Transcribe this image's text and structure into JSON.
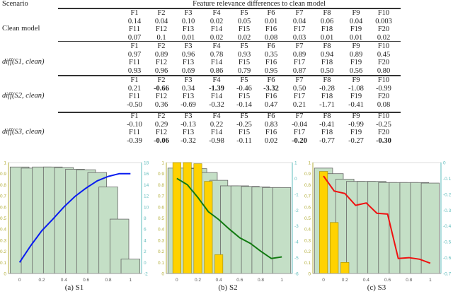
{
  "table": {
    "header": {
      "scenario": "Scenario",
      "features": "Feature relevance differences to clean model"
    },
    "blocks": [
      {
        "label": "Clean model",
        "italic": false,
        "rows": [
          [
            "F1",
            "F2",
            "F3",
            "F4",
            "F5",
            "F6",
            "F7",
            "F8",
            "F9",
            "F10"
          ],
          [
            "0.14",
            "0.04",
            "0.10",
            "0.02",
            "0.05",
            "0.01",
            "0.04",
            "0.06",
            "0.04",
            "0.003"
          ],
          [
            "F11",
            "F12",
            "F13",
            "F14",
            "F15",
            "F16",
            "F17",
            "F18",
            "F19",
            "F20"
          ],
          [
            "0.07",
            "0.1",
            "0.01",
            "0.02",
            "0.02",
            "0.08",
            "0.03",
            "0.01",
            "0.01",
            "0.02"
          ]
        ],
        "bold": []
      },
      {
        "label": "diff(S1, clean)",
        "italic": true,
        "rows": [
          [
            "F1",
            "F2",
            "F3",
            "F4",
            "F5",
            "F6",
            "F7",
            "F8",
            "F9",
            "F10"
          ],
          [
            "0.97",
            "0.89",
            "0.96",
            "0.78",
            "0.93",
            "0.35",
            "0.89",
            "0.94",
            "0.89",
            "0.45"
          ],
          [
            "F11",
            "F12",
            "F13",
            "F14",
            "F15",
            "F16",
            "F17",
            "F18",
            "F19",
            "F20"
          ],
          [
            "0.93",
            "0.96",
            "0.69",
            "0.86",
            "0.79",
            "0.95",
            "0.87",
            "0.50",
            "0.56",
            "0.80"
          ]
        ],
        "bold": []
      },
      {
        "label": "diff(S2, clean)",
        "italic": true,
        "rows": [
          [
            "F1",
            "F2",
            "F3",
            "F4",
            "F5",
            "F6",
            "F7",
            "F8",
            "F9",
            "F10"
          ],
          [
            "0.21",
            "-0.66",
            "0.34",
            "-1.39",
            "-0.46",
            "-3.32",
            "0.50",
            "-0.28",
            "-1.08",
            "-0.99"
          ],
          [
            "F11",
            "F12",
            "F13",
            "F14",
            "F15",
            "F16",
            "F17",
            "F18",
            "F19",
            "F20"
          ],
          [
            "-0.50",
            "0.36",
            "-0.69",
            "-0.32",
            "-0.14",
            "0.47",
            "0.21",
            "-1.71",
            "-0.41",
            "0.08"
          ]
        ],
        "bold": [
          "1-1",
          "1-3",
          "1-5"
        ]
      },
      {
        "label": "diff(S3, clean)",
        "italic": true,
        "rows": [
          [
            "F1",
            "F2",
            "F3",
            "F4",
            "F5",
            "F6",
            "F7",
            "F8",
            "F9",
            "F10"
          ],
          [
            "-0.10",
            "0.29",
            "-0.13",
            "0.22",
            "-0.25",
            "0.83",
            "-0.04",
            "-0.41",
            "-0.99",
            "-0.25"
          ],
          [
            "F11",
            "F12",
            "F13",
            "F14",
            "F15",
            "F16",
            "F17",
            "F18",
            "F19",
            "F20"
          ],
          [
            "-0.39",
            "-0.06",
            "-0.32",
            "-0.98",
            "-0.11",
            "0.02",
            "-0.20",
            "-0.77",
            "-0.27",
            "-0.30"
          ]
        ],
        "bold": [
          "3-1",
          "3-6",
          "3-9"
        ]
      }
    ]
  },
  "colors": {
    "bar": "#c4dfc6",
    "bar_edge": "#666666",
    "yellow": "#ffd200",
    "left_axis": "#b3ae3a",
    "right_axis": "#5fbcbc"
  },
  "chart_data": [
    {
      "type": "bar",
      "caption": "(a)  S1",
      "x": [
        0,
        0.1,
        0.2,
        0.3,
        0.4,
        0.5,
        0.6,
        0.7,
        0.8,
        0.9,
        1
      ],
      "xticks": [
        "0",
        "0.2",
        "0.4",
        "0.6",
        "0.8",
        "1"
      ],
      "ylim": [
        0,
        1
      ],
      "y2lim": [
        -2,
        18
      ],
      "y2ticks": [
        -2,
        0,
        2,
        4,
        6,
        8,
        10,
        12,
        14,
        16,
        18
      ],
      "series": [
        {
          "name": "green bars",
          "kind": "bar",
          "values": [
            0.96,
            0.95,
            0.96,
            0.96,
            0.955,
            0.94,
            0.935,
            0.91,
            0.78,
            0.49,
            0.13
          ]
        },
        {
          "name": "line",
          "kind": "line",
          "axis": "right",
          "color": "#0a1cf0",
          "values": [
            0,
            3,
            5.7,
            7.8,
            10,
            11.9,
            13.4,
            14.7,
            15.5,
            16,
            16
          ]
        }
      ]
    },
    {
      "type": "bar",
      "caption": "(b)  S2",
      "x": [
        0,
        0.1,
        0.2,
        0.3,
        0.4,
        0.5,
        0.6,
        0.7,
        0.8,
        0.9,
        1
      ],
      "xticks": [
        "0",
        "0.2",
        "0.4",
        "0.6",
        "0.8",
        "1"
      ],
      "ylim": [
        0,
        1
      ],
      "y2lim": [
        -6,
        1
      ],
      "y2ticks": [
        -6,
        -5,
        -4,
        -3,
        -2,
        -1,
        0,
        1
      ],
      "series": [
        {
          "name": "green bars",
          "kind": "bar",
          "values": [
            0.95,
            0.95,
            0.945,
            0.91,
            0.84,
            0.79,
            0.79,
            0.785,
            0.78,
            0.775,
            0.775
          ]
        },
        {
          "name": "yellow bars",
          "kind": "ybar",
          "values": [
            1,
            1,
            0.99,
            0.83,
            0.17,
            0,
            0,
            0,
            0,
            0,
            0
          ]
        },
        {
          "name": "line",
          "kind": "line",
          "axis": "right",
          "color": "#127a12",
          "values": [
            0,
            -0.4,
            -1.2,
            -2.1,
            -2.6,
            -3.2,
            -3.75,
            -4.1,
            -4.6,
            -5.05,
            -4.95
          ]
        }
      ]
    },
    {
      "type": "bar",
      "caption": "(c)  S3",
      "x": [
        0,
        0.1,
        0.2,
        0.3,
        0.4,
        0.5,
        0.6,
        0.7,
        0.8,
        0.9,
        1
      ],
      "xticks": [
        "0",
        "0.2",
        "0.4",
        "0.6",
        "0.8",
        "1"
      ],
      "ylim": [
        0,
        1
      ],
      "y2lim": [
        -0.7,
        0
      ],
      "y2ticks": [
        -0.7,
        -0.6,
        -0.5,
        -0.4,
        -0.3,
        -0.2,
        -0.1,
        0
      ],
      "series": [
        {
          "name": "green bars",
          "kind": "bar",
          "values": [
            0.95,
            0.9,
            0.85,
            0.83,
            0.83,
            0.83,
            0.82,
            0.82,
            0.82,
            0.82,
            0.815
          ]
        },
        {
          "name": "yellow bars",
          "kind": "ybar",
          "values": [
            0.92,
            0.46,
            0.1,
            0,
            0,
            0,
            0,
            0,
            0,
            0,
            0
          ]
        },
        {
          "name": "line",
          "kind": "line",
          "axis": "right",
          "color": "#f01010",
          "values": [
            -0.085,
            -0.18,
            -0.195,
            -0.27,
            -0.255,
            -0.32,
            -0.325,
            -0.605,
            -0.6,
            -0.61,
            -0.635
          ]
        }
      ]
    }
  ]
}
